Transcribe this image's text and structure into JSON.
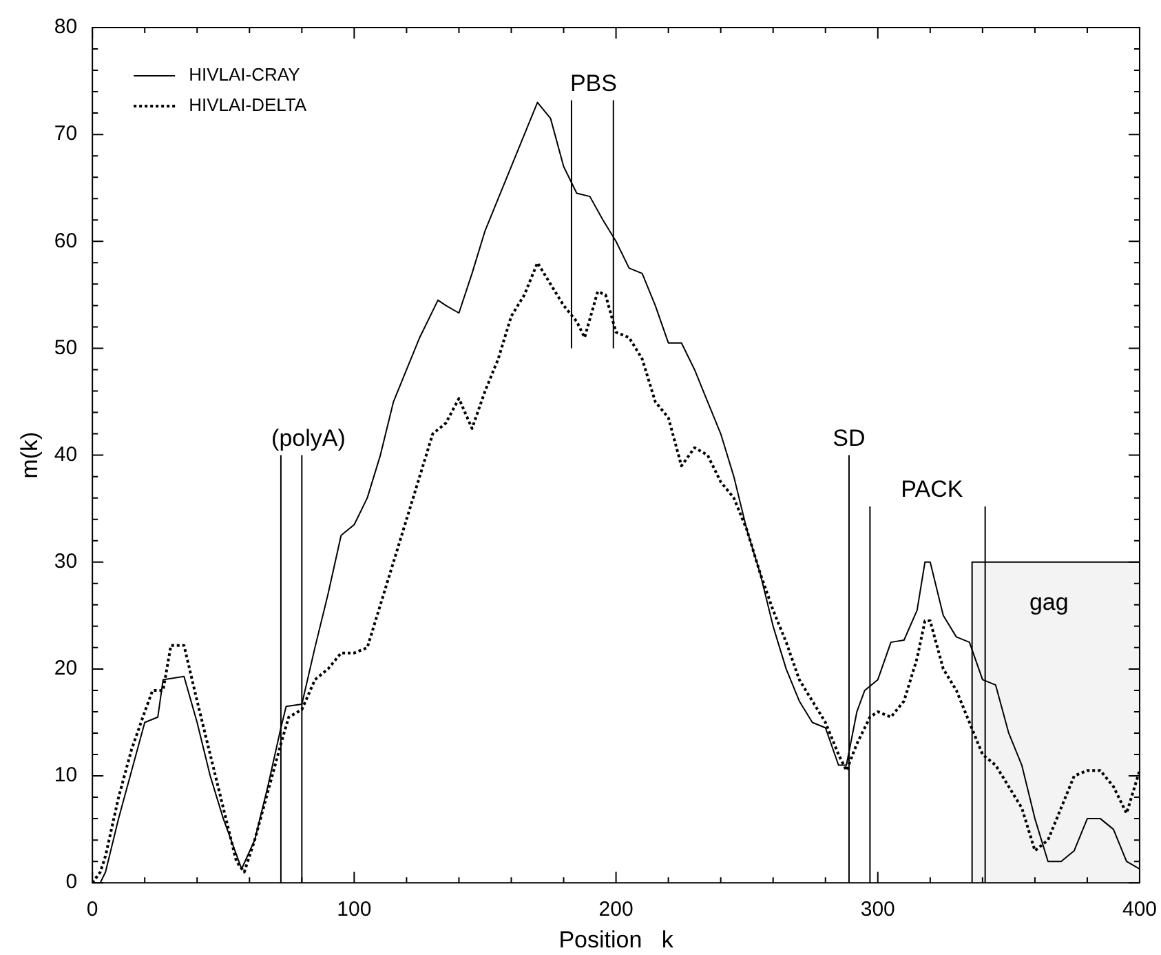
{
  "chart_data": {
    "type": "line",
    "xlabel": "Position   k",
    "ylabel": "m(k)",
    "xlim": [
      0,
      400
    ],
    "ylim": [
      0,
      80
    ],
    "xticks": [
      0,
      {
        "value": 20,
        "label": null
      },
      {
        "value": 40,
        "label": null
      },
      {
        "value": 60,
        "label": null
      },
      {
        "value": 80,
        "label": null
      },
      100,
      {
        "value": 120,
        "label": null
      },
      {
        "value": 140,
        "label": null
      },
      {
        "value": 160,
        "label": null
      },
      {
        "value": 180,
        "label": null
      },
      200,
      {
        "value": 220,
        "label": null
      },
      {
        "value": 240,
        "label": null
      },
      {
        "value": 260,
        "label": null
      },
      {
        "value": 280,
        "label": null
      },
      300,
      {
        "value": 320,
        "label": null
      },
      {
        "value": 340,
        "label": null
      },
      {
        "value": 360,
        "label": null
      },
      {
        "value": 380,
        "label": null
      },
      400
    ],
    "yticks": [
      0,
      {
        "value": 2,
        "label": null
      },
      {
        "value": 4,
        "label": null
      },
      {
        "value": 6,
        "label": null
      },
      {
        "value": 8,
        "label": null
      },
      10,
      {
        "value": 12,
        "label": null
      },
      {
        "value": 14,
        "label": null
      },
      {
        "value": 16,
        "label": null
      },
      {
        "value": 18,
        "label": null
      },
      20,
      {
        "value": 22,
        "label": null
      },
      {
        "value": 24,
        "label": null
      },
      {
        "value": 26,
        "label": null
      },
      {
        "value": 28,
        "label": null
      },
      30,
      {
        "value": 32,
        "label": null
      },
      {
        "value": 34,
        "label": null
      },
      {
        "value": 36,
        "label": null
      },
      {
        "value": 38,
        "label": null
      },
      40,
      {
        "value": 42,
        "label": null
      },
      {
        "value": 44,
        "label": null
      },
      {
        "value": 46,
        "label": null
      },
      {
        "value": 48,
        "label": null
      },
      50,
      {
        "value": 52,
        "label": null
      },
      {
        "value": 54,
        "label": null
      },
      {
        "value": 56,
        "label": null
      },
      {
        "value": 58,
        "label": null
      },
      60,
      {
        "value": 62,
        "label": null
      },
      {
        "value": 64,
        "label": null
      },
      {
        "value": 66,
        "label": null
      },
      {
        "value": 68,
        "label": null
      },
      70,
      {
        "value": 72,
        "label": null
      },
      {
        "value": 74,
        "label": null
      },
      {
        "value": 76,
        "label": null
      },
      {
        "value": 78,
        "label": null
      },
      80
    ],
    "grid": false,
    "legend": "top left",
    "marker": "none",
    "series": [
      {
        "name": "HIVLAI-CRAY",
        "color": "#000000",
        "line_style": "solid",
        "x": [
          3,
          5,
          10,
          15,
          20,
          25,
          27,
          35,
          40,
          45,
          50,
          57,
          62,
          67,
          72,
          74,
          80,
          85,
          90,
          95,
          100,
          105,
          110,
          115,
          120,
          125,
          132,
          135,
          140,
          145,
          150,
          155,
          160,
          165,
          170,
          175,
          180,
          185,
          190,
          195,
          200,
          205,
          210,
          215,
          220,
          225,
          230,
          235,
          240,
          245,
          250,
          255,
          260,
          265,
          270,
          275,
          280,
          285,
          288,
          292,
          295,
          300,
          305,
          310,
          315,
          318,
          320,
          325,
          330,
          335,
          340,
          345,
          350,
          355,
          360,
          365,
          370,
          375,
          380,
          385,
          390,
          395,
          400
        ],
        "values": [
          0,
          1,
          6,
          10.5,
          15,
          15.5,
          19,
          19.3,
          15,
          10,
          6,
          1.3,
          4,
          9,
          14.5,
          16.5,
          16.7,
          22,
          27,
          32.5,
          33.5,
          36,
          40,
          45,
          48,
          51,
          54.5,
          54,
          53.3,
          57,
          61,
          64,
          67,
          70,
          73,
          71.5,
          67,
          64.5,
          64.2,
          62,
          60,
          57.5,
          57,
          54,
          50.5,
          50.5,
          48,
          45,
          42,
          38,
          33,
          29,
          24,
          20,
          17,
          15,
          14.5,
          11,
          11,
          16,
          18,
          19,
          22.5,
          22.7,
          25.5,
          30,
          30,
          25,
          23,
          22.5,
          19,
          18.5,
          14,
          11,
          6,
          2,
          2,
          3,
          6,
          6,
          5,
          2,
          1.3
        ]
      },
      {
        "name": "HIVLAI-DELTA",
        "color": "#000000",
        "line_style": "dotted",
        "x": [
          0,
          3,
          5,
          10,
          15,
          20,
          23,
          27,
          30,
          35,
          40,
          45,
          50,
          55,
          58,
          62,
          67,
          72,
          75,
          80,
          85,
          90,
          95,
          100,
          105,
          110,
          115,
          120,
          125,
          130,
          135,
          140,
          145,
          150,
          155,
          160,
          165,
          170,
          175,
          180,
          185,
          188,
          193,
          196,
          200,
          205,
          210,
          215,
          220,
          225,
          230,
          235,
          240,
          245,
          250,
          255,
          260,
          265,
          270,
          275,
          280,
          285,
          288,
          292,
          297,
          300,
          305,
          310,
          315,
          318,
          320,
          325,
          330,
          335,
          340,
          345,
          350,
          355,
          360,
          365,
          370,
          375,
          380,
          385,
          390,
          395,
          400
        ],
        "values": [
          0,
          1,
          2.5,
          8,
          12.5,
          16,
          18,
          18,
          22.2,
          22.2,
          17,
          12,
          7,
          2,
          1,
          4,
          8.5,
          13,
          15.5,
          16.2,
          19,
          20,
          21.5,
          21.5,
          22,
          26,
          30,
          34,
          38,
          42,
          43,
          45.3,
          42.5,
          46,
          49,
          53,
          55,
          58,
          56,
          54,
          52.5,
          51,
          55.3,
          55,
          51.5,
          51,
          49,
          45,
          43.5,
          39,
          40.7,
          40,
          37.5,
          36,
          33,
          29,
          25.5,
          22.5,
          19,
          17,
          15,
          12,
          10.5,
          13,
          15.5,
          16,
          15.5,
          17,
          21,
          24.5,
          24.5,
          20,
          18,
          15,
          12,
          11,
          9,
          7,
          3,
          4,
          7,
          10,
          10.5,
          10.5,
          9,
          6.5,
          10.5
        ]
      }
    ],
    "ref_lines": [
      {
        "axis": "x",
        "value": 72,
        "label": "(polyA)"
      },
      {
        "axis": "x",
        "value": 80
      },
      {
        "axis": "x",
        "value": 183,
        "label": "PBS"
      },
      {
        "axis": "x",
        "value": 199
      },
      {
        "axis": "x",
        "value": 289,
        "label": "SD"
      },
      {
        "axis": "x",
        "value": 297,
        "label": "PACK"
      },
      {
        "axis": "x",
        "value": 341
      }
    ],
    "bands": [
      {
        "axis": "x",
        "from": 336,
        "to": 400,
        "label": "gag",
        "color": "#f3f3f3"
      }
    ]
  }
}
